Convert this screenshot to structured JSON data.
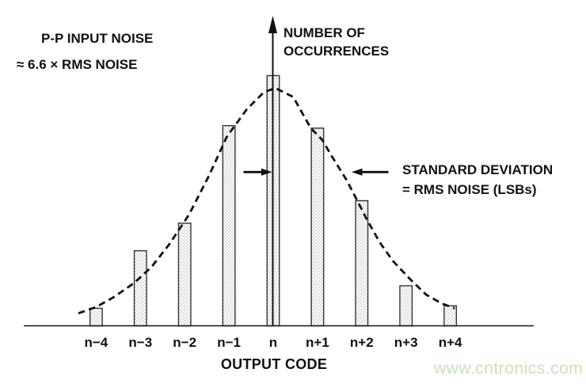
{
  "chart_data": {
    "type": "bar",
    "categories": [
      "n−4",
      "n−3",
      "n−2",
      "n−1",
      "n",
      "n+1",
      "n+2",
      "n+3",
      "n+4"
    ],
    "values": [
      7,
      30,
      41,
      80,
      100,
      79,
      50,
      16,
      8
    ],
    "values_note": "relative number of occurrences, tallest bar (code n) = 100",
    "xlabel": "OUTPUT CODE",
    "ylabel_line1": "NUMBER OF",
    "ylabel_line2": "OCCURRENCES",
    "ylim": [
      0,
      105
    ],
    "grid": false,
    "legend": "none",
    "bar_style": "white bars with fine gray dot stipple, thin dark outline",
    "overlay_curve": {
      "style": "dashed",
      "description": "gaussian noise-distribution envelope, peak ≈ 95 at code n, sigma ≈ 1.8 codes",
      "points": [
        [
          -4.4,
          5.0
        ],
        [
          -4.0,
          7.5
        ],
        [
          -3.6,
          11.5
        ],
        [
          -3.15,
          17.0
        ],
        [
          -2.75,
          23.5
        ],
        [
          -2.35,
          32.5
        ],
        [
          -1.9,
          44.5
        ],
        [
          -1.45,
          60.0
        ],
        [
          -1.05,
          75.5
        ],
        [
          -0.6,
          86.5
        ],
        [
          -0.2,
          93.5
        ],
        [
          0.05,
          95.0
        ],
        [
          0.45,
          91.5
        ],
        [
          0.85,
          79.0
        ],
        [
          1.1,
          74.5
        ],
        [
          1.35,
          67.0
        ],
        [
          1.65,
          58.5
        ],
        [
          1.9,
          50.0
        ],
        [
          2.1,
          43.0
        ],
        [
          2.4,
          33.5
        ],
        [
          2.7,
          26.0
        ],
        [
          3.1,
          18.5
        ],
        [
          3.45,
          12.5
        ],
        [
          3.8,
          9.0
        ],
        [
          4.1,
          7.0
        ]
      ]
    },
    "annotations": {
      "left_note_line1": "P-P INPUT NOISE",
      "left_note_line2": "≈ 6.6 × RMS NOISE",
      "std_dev_line1": "STANDARD DEVIATION",
      "std_dev_line2": "= RMS NOISE (LSBs)",
      "sigma_arrows": "two horizontal arrows pointing at the ±1σ width of the dashed curve"
    }
  },
  "watermark": "www.cntronics.com",
  "colors": {
    "background": "#ffffff",
    "ink": "#111111",
    "bar_stroke": "#333333",
    "bar_dot": "#8a8a8a",
    "watermark": "#c7e3bb"
  }
}
